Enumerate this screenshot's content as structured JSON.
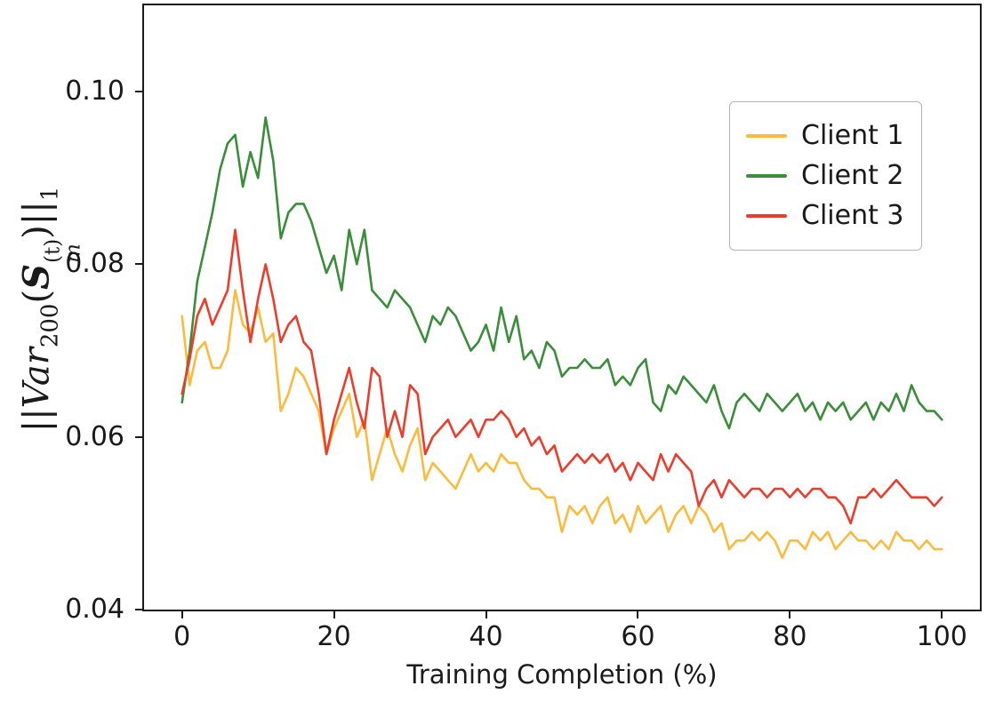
{
  "figure": {
    "background": "#ffffff"
  },
  "labels": {
    "x": "Training Completion (%)",
    "y": {
      "bar1": "||",
      "var": "Var",
      "var_sub": "200",
      "open": "(",
      "s": "S",
      "s_sup": "(t)",
      "s_sub": "m",
      "close": ")",
      "bar2": "||",
      "one": "1"
    }
  },
  "legend": {
    "position": "upper right",
    "entries": [
      "Client 1",
      "Client 2",
      "Client 3"
    ]
  },
  "chart_data": {
    "type": "line",
    "title": "",
    "xlabel": "Training Completion (%)",
    "ylabel": "||Var_200(S_m^(t))||_1",
    "x_start": 0,
    "x_end": 100,
    "xlim": [
      -5,
      105
    ],
    "ylim": [
      0.04,
      0.11
    ],
    "xticks": [
      0,
      20,
      40,
      60,
      80,
      100
    ],
    "xtick_labels": [
      "0",
      "20",
      "40",
      "60",
      "80",
      "100"
    ],
    "yticks": [
      0.04,
      0.06,
      0.08,
      0.1
    ],
    "ytick_labels": [
      "0.04",
      "0.06",
      "0.08",
      "0.10"
    ],
    "grid": false,
    "legend_position": "upper right",
    "series": [
      {
        "name": "Client 1",
        "color": "#FDBA3B",
        "values": [
          0.074,
          0.066,
          0.07,
          0.071,
          0.068,
          0.068,
          0.07,
          0.077,
          0.073,
          0.072,
          0.075,
          0.071,
          0.072,
          0.063,
          0.065,
          0.068,
          0.067,
          0.065,
          0.063,
          0.058,
          0.061,
          0.063,
          0.065,
          0.06,
          0.062,
          0.055,
          0.058,
          0.061,
          0.058,
          0.056,
          0.059,
          0.061,
          0.055,
          0.057,
          0.056,
          0.055,
          0.054,
          0.056,
          0.058,
          0.056,
          0.057,
          0.056,
          0.058,
          0.057,
          0.057,
          0.055,
          0.054,
          0.054,
          0.053,
          0.053,
          0.049,
          0.052,
          0.051,
          0.052,
          0.05,
          0.052,
          0.053,
          0.05,
          0.051,
          0.049,
          0.052,
          0.05,
          0.051,
          0.052,
          0.049,
          0.051,
          0.052,
          0.05,
          0.052,
          0.051,
          0.049,
          0.05,
          0.047,
          0.048,
          0.048,
          0.049,
          0.048,
          0.049,
          0.048,
          0.046,
          0.048,
          0.048,
          0.047,
          0.049,
          0.048,
          0.049,
          0.047,
          0.048,
          0.049,
          0.048,
          0.048,
          0.047,
          0.048,
          0.047,
          0.049,
          0.048,
          0.048,
          0.047,
          0.048,
          0.047,
          0.047
        ]
      },
      {
        "name": "Client 2",
        "color": "#3A8E3A",
        "values": [
          0.064,
          0.07,
          0.078,
          0.082,
          0.086,
          0.091,
          0.094,
          0.095,
          0.089,
          0.093,
          0.09,
          0.097,
          0.092,
          0.083,
          0.086,
          0.087,
          0.087,
          0.085,
          0.082,
          0.079,
          0.081,
          0.077,
          0.084,
          0.08,
          0.084,
          0.077,
          0.076,
          0.075,
          0.077,
          0.076,
          0.075,
          0.073,
          0.071,
          0.074,
          0.073,
          0.075,
          0.074,
          0.072,
          0.07,
          0.071,
          0.073,
          0.07,
          0.075,
          0.071,
          0.074,
          0.069,
          0.07,
          0.068,
          0.071,
          0.07,
          0.067,
          0.068,
          0.068,
          0.069,
          0.068,
          0.068,
          0.069,
          0.066,
          0.067,
          0.066,
          0.068,
          0.069,
          0.064,
          0.063,
          0.066,
          0.065,
          0.067,
          0.066,
          0.065,
          0.064,
          0.066,
          0.063,
          0.061,
          0.064,
          0.065,
          0.064,
          0.063,
          0.065,
          0.064,
          0.063,
          0.064,
          0.065,
          0.063,
          0.064,
          0.062,
          0.064,
          0.063,
          0.064,
          0.062,
          0.063,
          0.064,
          0.062,
          0.064,
          0.063,
          0.065,
          0.063,
          0.066,
          0.064,
          0.063,
          0.063,
          0.062
        ]
      },
      {
        "name": "Client 3",
        "color": "#EE3B2A",
        "values": [
          0.065,
          0.069,
          0.074,
          0.076,
          0.073,
          0.075,
          0.077,
          0.084,
          0.077,
          0.071,
          0.076,
          0.08,
          0.076,
          0.071,
          0.073,
          0.074,
          0.071,
          0.07,
          0.065,
          0.058,
          0.062,
          0.065,
          0.068,
          0.064,
          0.061,
          0.068,
          0.067,
          0.06,
          0.063,
          0.06,
          0.066,
          0.065,
          0.058,
          0.06,
          0.061,
          0.062,
          0.06,
          0.061,
          0.062,
          0.06,
          0.062,
          0.062,
          0.063,
          0.062,
          0.06,
          0.061,
          0.059,
          0.06,
          0.058,
          0.059,
          0.056,
          0.057,
          0.058,
          0.057,
          0.058,
          0.057,
          0.058,
          0.056,
          0.057,
          0.055,
          0.057,
          0.056,
          0.055,
          0.058,
          0.056,
          0.058,
          0.057,
          0.056,
          0.052,
          0.054,
          0.055,
          0.053,
          0.055,
          0.054,
          0.053,
          0.054,
          0.054,
          0.053,
          0.054,
          0.054,
          0.053,
          0.054,
          0.053,
          0.054,
          0.054,
          0.053,
          0.053,
          0.052,
          0.05,
          0.053,
          0.053,
          0.054,
          0.053,
          0.054,
          0.055,
          0.054,
          0.053,
          0.053,
          0.053,
          0.052,
          0.053
        ]
      }
    ]
  }
}
